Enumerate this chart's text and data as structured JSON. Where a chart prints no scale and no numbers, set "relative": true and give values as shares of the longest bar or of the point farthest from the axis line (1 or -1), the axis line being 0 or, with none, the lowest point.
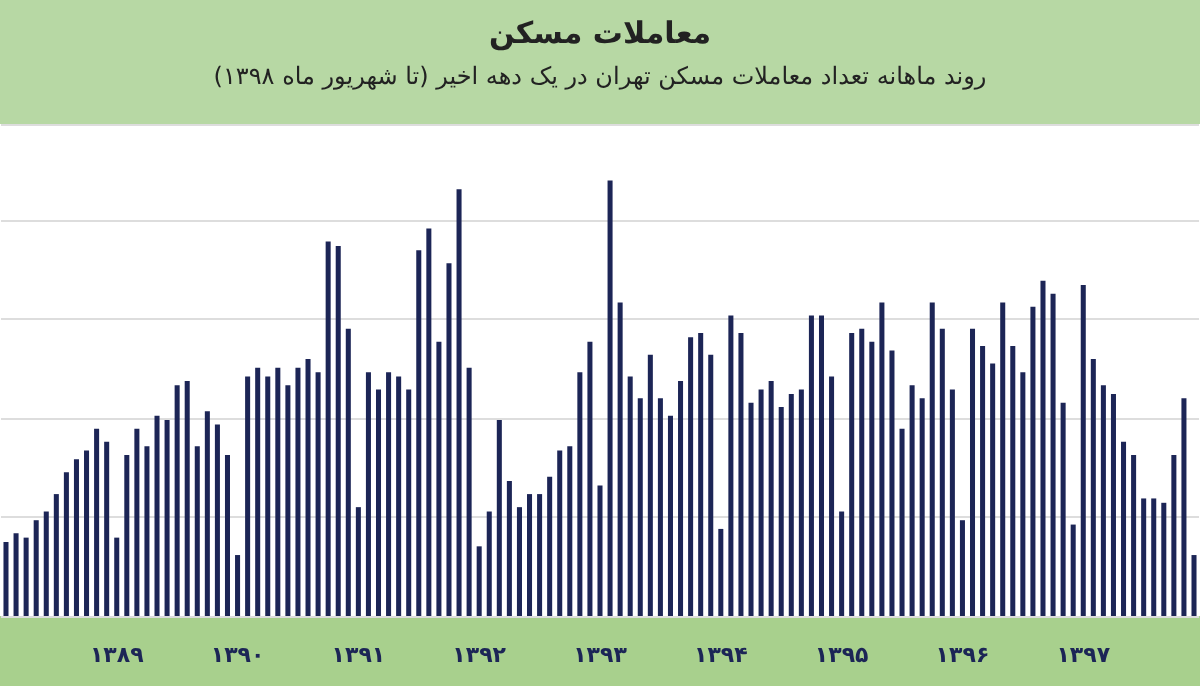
{
  "chart_data": {
    "type": "bar",
    "title": "معاملات مسکن",
    "subtitle": "روند ماهانه تعداد معاملات مسکن تهران در یک دهه اخیر (تا شهریور ماه ۱۳۹۸)",
    "relative": true,
    "grid": "y",
    "color": "#1c2556",
    "categories": [
      null,
      null,
      null,
      null,
      null,
      null,
      null,
      null,
      null,
      null,
      null,
      "۱۳۸۹",
      null,
      null,
      null,
      null,
      null,
      null,
      null,
      null,
      null,
      null,
      null,
      "۱۳۹۰",
      null,
      null,
      null,
      null,
      null,
      null,
      null,
      null,
      null,
      null,
      null,
      "۱۳۹۱",
      null,
      null,
      null,
      null,
      null,
      null,
      null,
      null,
      null,
      null,
      null,
      "۱۳۹۲",
      null,
      null,
      null,
      null,
      null,
      null,
      null,
      null,
      null,
      null,
      null,
      "۱۳۹۳",
      null,
      null,
      null,
      null,
      null,
      null,
      null,
      null,
      null,
      null,
      null,
      "۱۳۹۴",
      null,
      null,
      null,
      null,
      null,
      null,
      null,
      null,
      null,
      null,
      null,
      "۱۳۹۵",
      null,
      null,
      null,
      null,
      null,
      null,
      null,
      null,
      null,
      null,
      null,
      "۱۳۹۶",
      null,
      null,
      null,
      null,
      null,
      null,
      null,
      null,
      null,
      null,
      null,
      "۱۳۹۷",
      null,
      null,
      null,
      null,
      null,
      null,
      null,
      null,
      null,
      null,
      null
    ],
    "values": [
      0.17,
      0.19,
      0.18,
      0.22,
      0.24,
      0.28,
      0.33,
      0.36,
      0.38,
      0.43,
      0.4,
      0.18,
      0.37,
      0.43,
      0.39,
      0.46,
      0.45,
      0.53,
      0.54,
      0.39,
      0.47,
      0.44,
      0.37,
      0.14,
      0.55,
      0.57,
      0.55,
      0.57,
      0.53,
      0.57,
      0.59,
      0.56,
      0.86,
      0.85,
      0.66,
      0.25,
      0.56,
      0.52,
      0.56,
      0.55,
      0.52,
      0.84,
      0.89,
      0.63,
      0.81,
      0.98,
      0.57,
      0.16,
      0.24,
      0.45,
      0.31,
      0.25,
      0.28,
      0.28,
      0.32,
      0.38,
      0.39,
      0.56,
      0.63,
      0.3,
      1,
      0.72,
      0.55,
      0.5,
      0.6,
      0.5,
      0.46,
      0.54,
      0.64,
      0.65,
      0.6,
      0.2,
      0.69,
      0.65,
      0.49,
      0.52,
      0.54,
      0.48,
      0.51,
      0.52,
      0.69,
      0.69,
      0.55,
      0.24,
      0.65,
      0.66,
      0.63,
      0.72,
      0.61,
      0.43,
      0.53,
      0.5,
      0.72,
      0.66,
      0.52,
      0.22,
      0.66,
      0.62,
      0.58,
      0.72,
      0.62,
      0.56,
      0.71,
      0.77,
      0.74,
      0.49,
      0.21,
      0.76,
      0.59,
      0.53,
      0.51,
      0.4,
      0.37,
      0.27,
      0.27,
      0.26,
      0.37,
      0.5,
      0.14
    ]
  }
}
